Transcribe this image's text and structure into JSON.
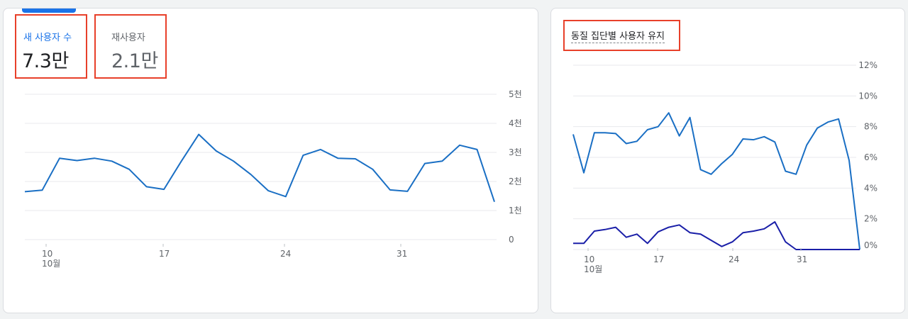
{
  "users_card": {
    "metrics": {
      "new_users": {
        "label": "새 사용자 수",
        "value": "7.3만"
      },
      "returning_users": {
        "label": "재사용자",
        "value": "2.1만"
      }
    },
    "chart_data": {
      "type": "line",
      "x_ticks": [
        "10",
        "17",
        "24",
        "31"
      ],
      "x_sub_label": "10월",
      "y_ticks": [
        "0",
        "1천",
        "2천",
        "3천",
        "4천",
        "5천"
      ],
      "ylim": [
        0,
        5000
      ],
      "series": [
        {
          "color": "#1a6fc4",
          "values": [
            1650,
            1700,
            2800,
            2720,
            2800,
            2700,
            2420,
            1820,
            1730,
            2700,
            3620,
            3050,
            2700,
            2240,
            1680,
            1480,
            2900,
            3100,
            2800,
            2780,
            2420,
            1710,
            1660,
            2620,
            2700,
            3250,
            3100,
            1300
          ]
        }
      ]
    }
  },
  "cohort_card": {
    "title": "동질 집단별 사용자 유지",
    "chart_data": {
      "type": "line",
      "x_ticks": [
        "10",
        "17",
        "24",
        "31"
      ],
      "x_sub_label": "10월",
      "y_ticks": [
        "0%",
        "2%",
        "4%",
        "6%",
        "8%",
        "10%",
        "12%"
      ],
      "ylim": [
        0,
        12
      ],
      "series": [
        {
          "color": "#1a6fc4",
          "values": [
            7.5,
            5.0,
            7.6,
            7.6,
            7.55,
            6.9,
            7.05,
            7.8,
            8.0,
            8.9,
            7.4,
            8.6,
            5.2,
            4.9,
            5.6,
            6.2,
            7.2,
            7.15,
            7.35,
            7.0,
            5.1,
            4.9,
            6.8,
            7.9,
            8.3,
            8.5,
            5.8,
            0
          ]
        },
        {
          "color": "#1a1fa8",
          "values": [
            0.4,
            0.4,
            1.2,
            1.3,
            1.45,
            0.8,
            1.0,
            0.4,
            1.15,
            1.45,
            1.6,
            1.1,
            1.0,
            0.6,
            0.2,
            0.5,
            1.1,
            1.2,
            1.35,
            1.8,
            0.5,
            0,
            0,
            0,
            0,
            0,
            0,
            0
          ]
        }
      ]
    }
  }
}
